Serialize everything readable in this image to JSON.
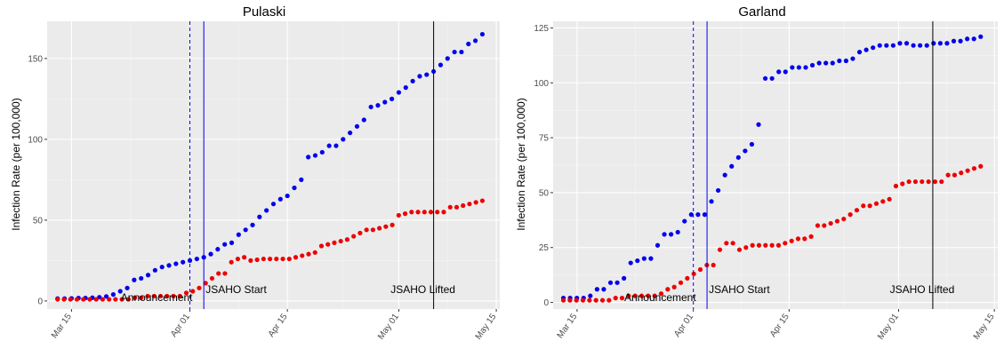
{
  "chart_data": [
    {
      "type": "scatter",
      "title": "Pulaski",
      "ylabel": "Infection Rate (per 100,000)",
      "xlabel": "",
      "x_ticks": [
        "Mar 15",
        "Apr 01",
        "Apr 15",
        "May 01",
        "May 15"
      ],
      "y_ticks": [
        "0",
        "50",
        "100",
        "150"
      ],
      "ylim": [
        -5,
        173
      ],
      "grid": true,
      "series_colors": [
        "#0000ee",
        "#ee0000"
      ],
      "series": [
        {
          "values": [
            1.5,
            1.5,
            1.6,
            1.8,
            1.8,
            2,
            2.3,
            2.8,
            4,
            6,
            8,
            13,
            14,
            16,
            19,
            21,
            22,
            23,
            24,
            25,
            26,
            27,
            29,
            32,
            35,
            36,
            41,
            44,
            47,
            52,
            56,
            60,
            63,
            65,
            70,
            75,
            89,
            90,
            92,
            96,
            96,
            100,
            104,
            108,
            112,
            120,
            121,
            123,
            125,
            129,
            132,
            136,
            139,
            140,
            142,
            146,
            150,
            154,
            154,
            159,
            161,
            165
          ]
        },
        {
          "values": [
            1,
            1,
            1,
            1,
            1,
            1,
            1,
            1,
            1,
            1,
            1,
            1,
            2,
            2,
            3,
            3,
            3,
            3,
            3,
            3,
            5,
            6,
            8,
            11,
            14,
            17,
            17,
            24,
            26,
            27,
            25,
            25.5,
            26,
            26,
            26,
            26,
            26,
            27,
            28,
            29,
            30,
            34,
            35,
            36,
            37,
            38,
            40,
            42,
            44,
            44,
            45,
            46,
            47,
            53,
            54,
            55,
            55,
            55,
            55,
            55,
            55,
            58,
            58,
            59,
            60,
            61,
            62
          ]
        }
      ],
      "vlines": [
        {
          "date": "Apr 01",
          "style": "dashed",
          "color": "#0000ee",
          "label": "Announcement"
        },
        {
          "date": "Apr 03",
          "style": "solid",
          "color": "#0000ee",
          "label": "JSAHO Start"
        },
        {
          "date": "May 06",
          "style": "solid",
          "color": "#000000",
          "label": "JSAHO Lifted"
        }
      ]
    },
    {
      "type": "scatter",
      "title": "Garland",
      "ylabel": "Infection Rate (per 100,000)",
      "xlabel": "",
      "x_ticks": [
        "Mar 15",
        "Apr 01",
        "Apr 15",
        "May 01",
        "May 15"
      ],
      "y_ticks": [
        "0",
        "25",
        "50",
        "75",
        "100",
        "125"
      ],
      "ylim": [
        -3,
        128
      ],
      "grid": true,
      "series_colors": [
        "#0000ee",
        "#ee0000"
      ],
      "series": [
        {
          "values": [
            2,
            2,
            2,
            2,
            3,
            6,
            6,
            9,
            9,
            11,
            18,
            19,
            20,
            20,
            26,
            31,
            31,
            32,
            37,
            40,
            40,
            40,
            46,
            51,
            58,
            62,
            66,
            69,
            72,
            81,
            102,
            102,
            105,
            105,
            107,
            107,
            107,
            108,
            109,
            109,
            109,
            110,
            110,
            111,
            114,
            115,
            116,
            117,
            117,
            117,
            118,
            118,
            117,
            117,
            117,
            118,
            118,
            118,
            119,
            119,
            120,
            120,
            121
          ]
        },
        {
          "values": [
            1,
            1,
            1,
            1,
            1,
            1,
            1,
            1,
            2,
            2,
            3,
            3,
            3,
            3,
            3,
            4,
            6,
            7,
            9,
            11,
            13,
            15,
            17,
            17,
            24,
            27,
            27,
            24,
            25,
            26,
            26,
            26,
            26,
            26,
            27,
            28,
            29,
            29,
            30,
            35,
            35,
            36,
            37,
            38,
            40,
            42,
            44,
            44,
            45,
            46,
            47,
            53,
            54,
            55,
            55,
            55,
            55,
            55,
            55,
            58,
            58,
            59,
            60,
            61,
            62
          ]
        }
      ],
      "vlines": [
        {
          "date": "Apr 01",
          "style": "dashed",
          "color": "#0000ee",
          "label": "Announcement"
        },
        {
          "date": "Apr 03",
          "style": "solid",
          "color": "#0000ee",
          "label": "JSAHO Start"
        },
        {
          "date": "May 06",
          "style": "solid",
          "color": "#000000",
          "label": "JSAHO Lifted"
        }
      ]
    }
  ]
}
